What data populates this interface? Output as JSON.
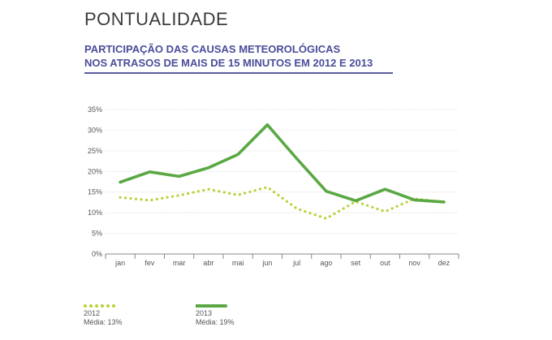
{
  "header": {
    "section_title": "PONTUALIDADE",
    "subtitle_line1": "PARTICIPAÇÃO DAS CAUSAS METEOROLÓGICAS",
    "subtitle_line2": "NOS ATRASOS DE MAIS DE 15 MINUTOS EM 2012 E 2013"
  },
  "legend": [
    {
      "label": "2012",
      "note": "Média: 13%"
    },
    {
      "label": "2013",
      "note": "Média: 19%"
    }
  ],
  "colors": {
    "series_2012": "#b5d334",
    "series_2013": "#5aa843",
    "grid": "#dcdcdc",
    "axis": "#888888"
  },
  "chart_data": {
    "type": "line",
    "title": "PARTICIPAÇÃO DAS CAUSAS METEOROLÓGICAS NOS ATRASOS DE MAIS DE 15 MINUTOS EM 2012 E 2013",
    "xlabel": "",
    "ylabel": "",
    "categories": [
      "jan",
      "fev",
      "mar",
      "abr",
      "mai",
      "jun",
      "jul",
      "ago",
      "set",
      "out",
      "nov",
      "dez"
    ],
    "y_ticks": [
      "0%",
      "5%",
      "10%",
      "15%",
      "20%",
      "25%",
      "30%",
      "35%"
    ],
    "ylim": [
      0,
      35
    ],
    "grid": true,
    "legend_position": "bottom-left",
    "series": [
      {
        "name": "2012",
        "style": "dotted",
        "values": [
          13.7,
          13.0,
          14.2,
          15.7,
          14.3,
          16.2,
          11.0,
          8.6,
          12.7,
          10.3,
          13.4,
          12.6
        ]
      },
      {
        "name": "2013",
        "style": "solid",
        "values": [
          17.4,
          19.9,
          18.8,
          20.9,
          24.1,
          31.3,
          23.1,
          15.2,
          12.9,
          15.7,
          13.1,
          12.6
        ]
      }
    ]
  }
}
